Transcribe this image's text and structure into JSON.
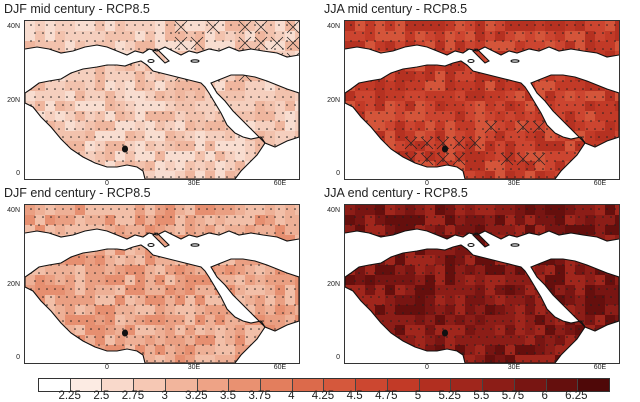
{
  "panels": [
    {
      "title": "DJF mid century - RCP8.5",
      "intensity": "low",
      "hatch": "north-east",
      "hatch_level": 0.35
    },
    {
      "title": "JJA mid century - RCP8.5",
      "intensity": "mid",
      "hatch": "sahel",
      "hatch_level": 0.3
    },
    {
      "title": "DJF end century - RCP8.5",
      "intensity": "lowmid",
      "hatch": "none",
      "hatch_level": 0.0
    },
    {
      "title": "JJA end century - RCP8.5",
      "intensity": "high",
      "hatch": "none",
      "hatch_level": 0.0
    }
  ],
  "lat_labels": [
    "40N",
    "20N",
    "0"
  ],
  "lon_labels": [
    "0",
    "30E",
    "60E"
  ],
  "colorbar": {
    "labels": [
      "2.25",
      "2.5",
      "2.75",
      "3",
      "3.25",
      "3.5",
      "3.75",
      "4",
      "4.25",
      "4.5",
      "4.75",
      "5",
      "5.25",
      "5.5",
      "5.75",
      "6",
      "6.25"
    ],
    "colors": [
      "#ffffff",
      "#fcebe3",
      "#f9d9cb",
      "#f6c8b4",
      "#f2b59c",
      "#eea386",
      "#e99171",
      "#e37e5d",
      "#dc6a4b",
      "#d5583c",
      "#cc4730",
      "#c23a27",
      "#b22f20",
      "#a0261c",
      "#8c1d17",
      "#781512",
      "#650f0d",
      "#4f0808"
    ]
  },
  "colors": {
    "sea": "#ffffff",
    "coast": "#111111",
    "stipple": "#222222"
  }
}
